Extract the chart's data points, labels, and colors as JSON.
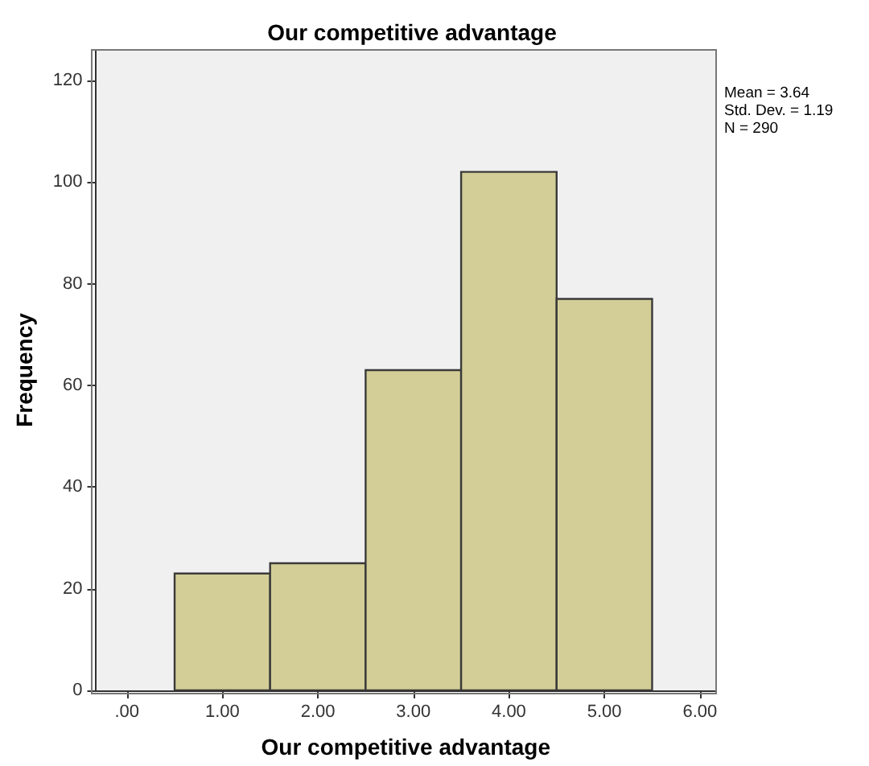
{
  "chart_data": {
    "type": "histogram",
    "title": "Our competitive advantage",
    "xlabel": "Our competitive advantage",
    "ylabel": "Frequency",
    "bins": [
      0.5,
      1.5,
      2.5,
      3.5,
      4.5,
      5.5
    ],
    "values": [
      23,
      25,
      63,
      102,
      77
    ],
    "color": "#d3ce97",
    "xlim": [
      -0.33,
      6.17
    ],
    "xticks": [
      {
        "value": 0,
        "label": ".00"
      },
      {
        "value": 1,
        "label": "1.00"
      },
      {
        "value": 2,
        "label": "2.00"
      },
      {
        "value": 3,
        "label": "3.00"
      },
      {
        "value": 4,
        "label": "4.00"
      },
      {
        "value": 5,
        "label": "5.00"
      },
      {
        "value": 6,
        "label": "6.00"
      }
    ],
    "ylim": [
      0,
      126
    ],
    "yticks": [
      0,
      20,
      40,
      60,
      80,
      100,
      120
    ],
    "annotations": [
      "Mean = 3.64",
      "Std. Dev. = 1.19",
      "N = 290"
    ],
    "grid": false
  }
}
